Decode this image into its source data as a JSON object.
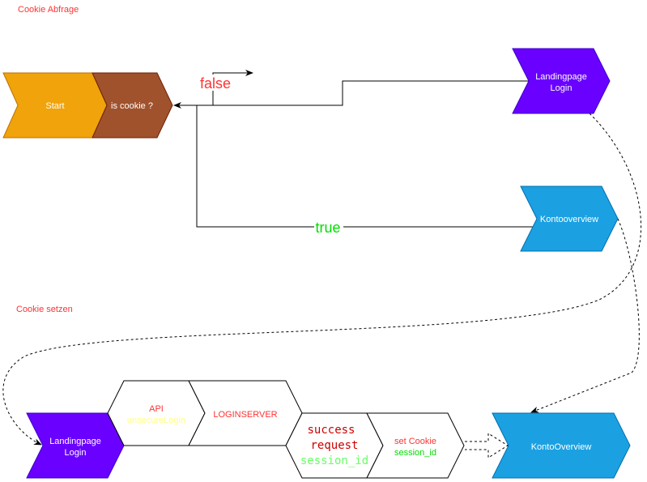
{
  "sections": {
    "query": "Cookie Abfrage",
    "set": "Cookie setzen"
  },
  "colors": {
    "start": "#f0a30a",
    "decision": "#a0522d",
    "landing": "#6a00ff",
    "konto": "#1ba1e2",
    "red": "#ff3333",
    "green": "#00ff00"
  },
  "nodes": {
    "start": "Start",
    "is_cookie": "is cookie ?",
    "landing_top": [
      "Landingpage",
      "Login"
    ],
    "konto_top": "Kontooverview",
    "landing_bottom": [
      "Landingpage",
      "Login"
    ],
    "api": [
      "API",
      "unsecureLogin"
    ],
    "loginserver": "LOGINSERVER",
    "success": [
      "success",
      "request",
      "session_id"
    ],
    "set_cookie": [
      "set Cookie",
      "session_id"
    ],
    "konto_bottom": "KontoOverview"
  },
  "edges": {
    "false": "false",
    "true": "true"
  }
}
